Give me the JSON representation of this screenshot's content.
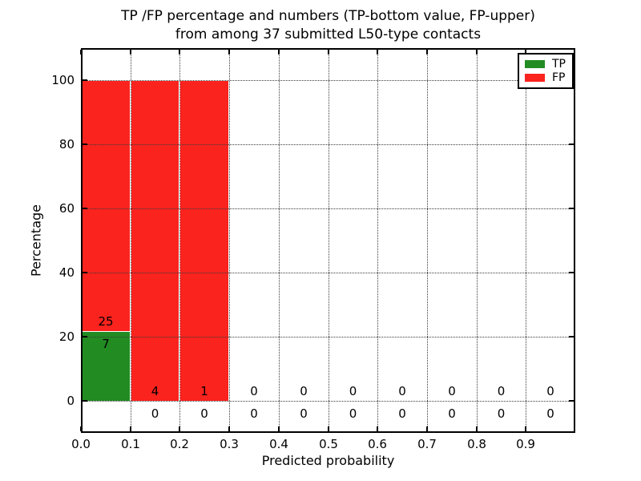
{
  "chart_data": {
    "type": "bar",
    "stacked": true,
    "title_lines": [
      "TP /FP percentage and numbers (TP-bottom value, FP-upper)",
      "from among 37 submitted L50-type contacts"
    ],
    "xlabel": "Predicted probability",
    "ylabel": "Percentage",
    "total_contacts": 37,
    "x_tick_labels": [
      "0.0",
      "0.1",
      "0.2",
      "0.3",
      "0.4",
      "0.5",
      "0.6",
      "0.7",
      "0.8",
      "0.9"
    ],
    "y_ticks": [
      0,
      20,
      40,
      60,
      80,
      100
    ],
    "y_tick_labels": [
      "0",
      "20",
      "40",
      "60",
      "80",
      "100"
    ],
    "xlim": [
      0.0,
      1.0
    ],
    "ylim": [
      -10,
      110
    ],
    "grid": "dotted, both axes",
    "legend_position": "upper right",
    "legend": [
      {
        "name": "TP",
        "color": "#228b22"
      },
      {
        "name": "FP",
        "color": "#fa231e"
      }
    ],
    "bins": [
      {
        "x_start": 0.0,
        "x_end": 0.1,
        "tp_count": 7,
        "fp_count": 25,
        "tp_pct": 21.875,
        "fp_pct": 78.125
      },
      {
        "x_start": 0.1,
        "x_end": 0.2,
        "tp_count": 0,
        "fp_count": 4,
        "tp_pct": 0,
        "fp_pct": 100
      },
      {
        "x_start": 0.2,
        "x_end": 0.3,
        "tp_count": 0,
        "fp_count": 1,
        "tp_pct": 0,
        "fp_pct": 100
      },
      {
        "x_start": 0.3,
        "x_end": 0.4,
        "tp_count": 0,
        "fp_count": 0,
        "tp_pct": 0,
        "fp_pct": 0
      },
      {
        "x_start": 0.4,
        "x_end": 0.5,
        "tp_count": 0,
        "fp_count": 0,
        "tp_pct": 0,
        "fp_pct": 0
      },
      {
        "x_start": 0.5,
        "x_end": 0.6,
        "tp_count": 0,
        "fp_count": 0,
        "tp_pct": 0,
        "fp_pct": 0
      },
      {
        "x_start": 0.6,
        "x_end": 0.7,
        "tp_count": 0,
        "fp_count": 0,
        "tp_pct": 0,
        "fp_pct": 0
      },
      {
        "x_start": 0.7,
        "x_end": 0.8,
        "tp_count": 0,
        "fp_count": 0,
        "tp_pct": 0,
        "fp_pct": 0
      },
      {
        "x_start": 0.8,
        "x_end": 0.9,
        "tp_count": 0,
        "fp_count": 0,
        "tp_pct": 0,
        "fp_pct": 0
      },
      {
        "x_start": 0.9,
        "x_end": 1.0,
        "tp_count": 0,
        "fp_count": 0,
        "tp_pct": 0,
        "fp_pct": 0
      }
    ]
  }
}
